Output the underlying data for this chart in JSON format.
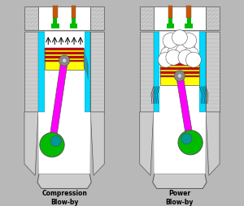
{
  "fig_width": 3.0,
  "fig_height": 2.55,
  "dpi": 100,
  "bg_color": "#b8b8b8",
  "label_left": "Compression\nBlow-by",
  "label_right": "Power\nBlow-by",
  "colors": {
    "gray_body": "#999999",
    "gray_hatch": "#888888",
    "gray_dark": "#555555",
    "gray_light": "#cccccc",
    "white_bg": "#ffffff",
    "cyan": "#00d8ff",
    "yellow": "#ffff00",
    "magenta": "#ff00ff",
    "green_dark": "#00bb00",
    "green_teal": "#009999",
    "red": "#cc0000",
    "orange": "#cc5500",
    "black": "#000000",
    "arrow_dark": "#222222"
  }
}
